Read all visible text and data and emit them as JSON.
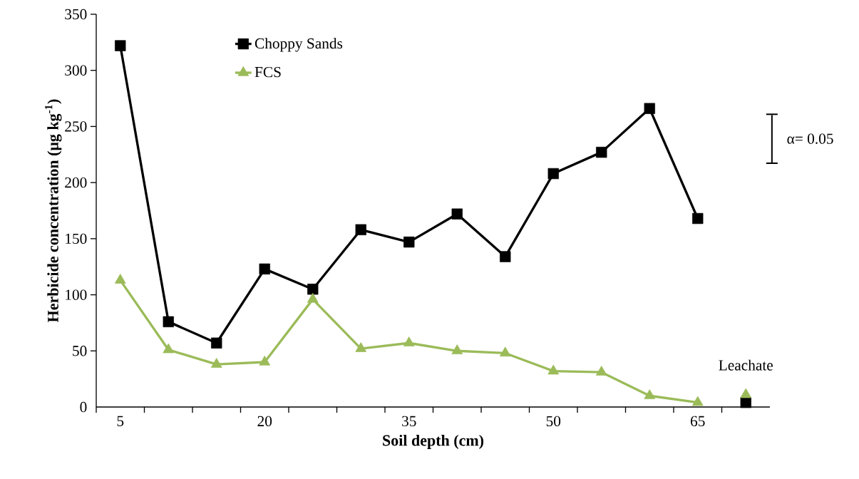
{
  "chart_data": {
    "type": "line",
    "xlabel": "Soil depth (cm)",
    "ylabel": "Herbicide concentration (μg kg$^{-1}$)",
    "xlim": [
      2.5,
      72.5
    ],
    "xticks": [
      {
        "value": 2.5,
        "label": null
      },
      5,
      {
        "value": 7.5,
        "label": null
      },
      {
        "value": 12.5,
        "label": null
      },
      {
        "value": 17.5,
        "label": null
      },
      20,
      {
        "value": 22.5,
        "label": null
      },
      {
        "value": 27.5,
        "label": null
      },
      {
        "value": 32.5,
        "label": null
      },
      35,
      {
        "value": 37.5,
        "label": null
      },
      {
        "value": 42.5,
        "label": null
      },
      {
        "value": 47.5,
        "label": null
      },
      50,
      {
        "value": 52.5,
        "label": null
      },
      {
        "value": 57.5,
        "label": null
      },
      {
        "value": 62.5,
        "label": null
      },
      65,
      {
        "value": 67.5,
        "label": null
      }
    ],
    "ylim": [
      0,
      350
    ],
    "yticks": [
      0,
      50,
      100,
      150,
      200,
      250,
      300,
      350
    ],
    "legend": "top left",
    "series": [
      {
        "name": "Choppy Sands",
        "color": "#000000",
        "marker": "square",
        "x": [
          5,
          10,
          15,
          20,
          25,
          30,
          35,
          40,
          45,
          50,
          55,
          60,
          65
        ],
        "values": [
          322,
          76,
          57,
          123,
          105,
          158,
          147,
          172,
          134,
          208,
          227,
          266,
          168
        ]
      },
      {
        "name": "FCS",
        "color": "#9bbb59",
        "marker": "triangle",
        "x": [
          5,
          10,
          15,
          20,
          25,
          30,
          35,
          40,
          45,
          50,
          55,
          60,
          65
        ],
        "values": [
          113,
          51,
          38,
          40,
          96,
          52,
          57,
          50,
          48,
          32,
          31,
          10,
          4
        ]
      },
      {
        "type": "scatter",
        "color": "#000000",
        "marker": "square",
        "x": [
          70
        ],
        "values": [
          4
        ]
      },
      {
        "type": "scatter",
        "color": "#9bbb59",
        "marker": "triangle",
        "x": [
          70
        ],
        "values": [
          11
        ]
      }
    ],
    "annotations": [
      {
        "text": "Leachate",
        "x": 70,
        "y": 11
      },
      "α= 0.05"
    ]
  }
}
